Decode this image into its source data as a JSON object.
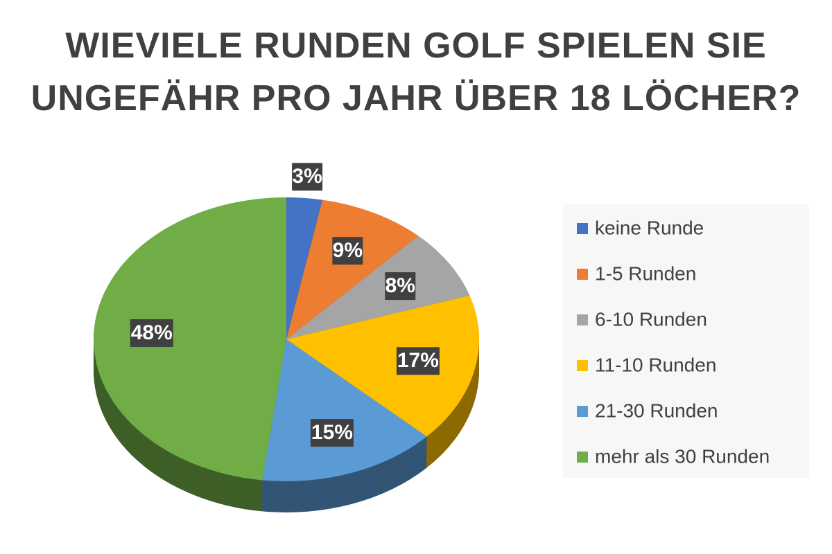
{
  "chart_data": {
    "type": "pie",
    "title": "WIEVIELE RUNDEN GOLF SPIELEN SIE UNGEFÄHR PRO JAHR ÜBER 18 LÖCHER?",
    "categories": [
      "keine Runde",
      "1-5 Runden",
      "6-10 Runden",
      "11-10 Runden",
      "21-30 Runden",
      "mehr als 30 Runden"
    ],
    "values": [
      3,
      9,
      8,
      17,
      15,
      48
    ],
    "value_labels": [
      "3%",
      "9%",
      "8%",
      "17%",
      "15%",
      "48%"
    ],
    "colors": [
      "#4472c4",
      "#ed7d31",
      "#a5a5a5",
      "#ffc000",
      "#5b9bd5",
      "#70ad47"
    ],
    "legend": "right"
  }
}
